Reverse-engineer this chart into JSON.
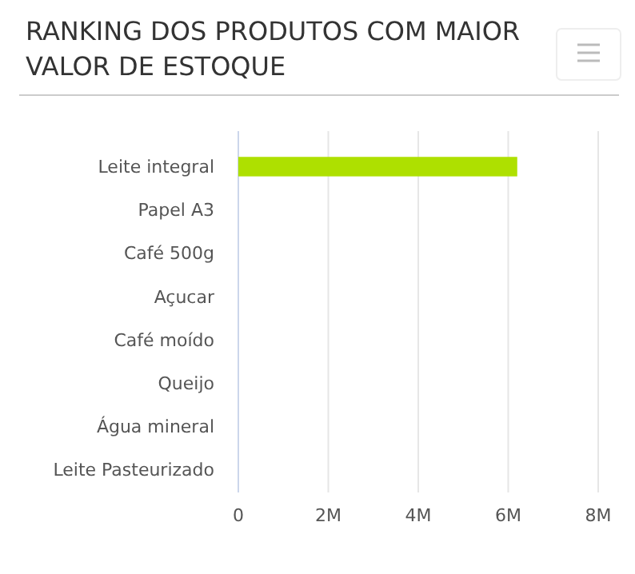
{
  "chart_data": {
    "type": "bar",
    "orientation": "horizontal",
    "title": "RANKING DOS PRODUTOS COM MAIOR VALOR DE ESTOQUE",
    "categories": [
      "Leite integral",
      "Papel A3",
      "Café 500g",
      "Açucar",
      "Café moído",
      "Queijo",
      "Água mineral",
      "Leite Pasteurizado"
    ],
    "values": [
      6200000,
      0,
      0,
      0,
      0,
      0,
      0,
      0
    ],
    "color": "#aee000",
    "xlim": [
      0,
      8000000
    ],
    "xticks": [
      0,
      {
        "value": 2000000,
        "label": "2M"
      },
      {
        "value": 4000000,
        "label": "4M"
      },
      {
        "value": 6000000,
        "label": "6M"
      },
      {
        "value": 8000000,
        "label": "8M"
      }
    ],
    "grid": "x"
  }
}
